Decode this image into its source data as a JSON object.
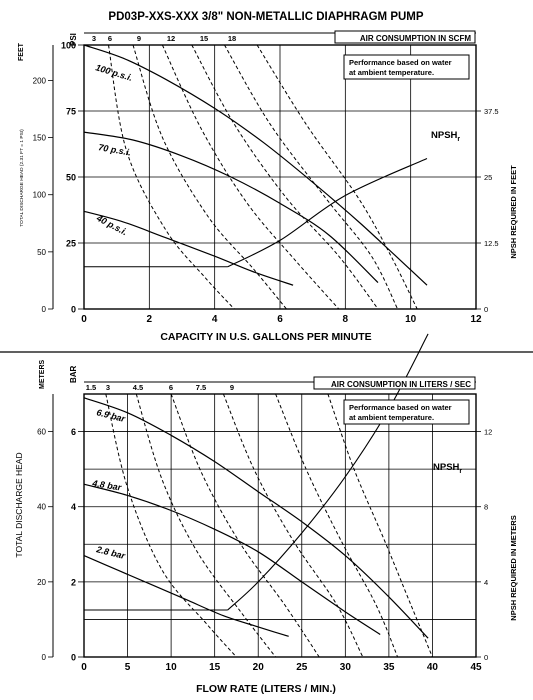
{
  "title": "PD03P-XXS-XXX  3/8\" NON-METALLIC DIAPHRAGM PUMP",
  "ambient_note": [
    "Performance based on water",
    "at ambient temperature."
  ],
  "npsh_label": "NPSH",
  "npsh_sub": "r",
  "colors": {
    "line": "#000000",
    "background": "#ffffff"
  },
  "chart_data": [
    {
      "type": "line",
      "title": "PD03P-XXS-XXX  3/8\" NON-METALLIC DIAPHRAGM PUMP",
      "xlabel": "CAPACITY IN U.S. GALLONS PER MINUTE",
      "ylabel_left": "TOTAL DISCHARGE HEAD (2.31 FT = 1 PSI)",
      "ylabel_left_unit": "FEET",
      "ylabel_psi_unit": "PSI",
      "ylabel_right": "NPSH REQUIRED IN FEET",
      "top_axis_label": "AIR CONSUMPTION IN SCFM",
      "xlim": [
        0,
        12
      ],
      "ylim_psi": [
        0,
        100
      ],
      "x_ticks": [
        "0",
        "2",
        "4",
        "6",
        "8",
        "10",
        "12"
      ],
      "feet_ticks": [
        "0",
        "50",
        "100",
        "150",
        "200"
      ],
      "psi_ticks": [
        "0",
        "25",
        "50",
        "75",
        "100"
      ],
      "npsh_ticks": [
        "0",
        "12.5",
        "25",
        "37.5"
      ],
      "scfm_ticks": [
        "3",
        "6",
        "9",
        "12",
        "15",
        "18"
      ],
      "npsh_max": 50,
      "grid": true,
      "series": [
        {
          "name": "100 p.s.i.",
          "points": [
            [
              0,
              100
            ],
            [
              1.2,
              95
            ],
            [
              2.5,
              87
            ],
            [
              4,
              76
            ],
            [
              5.5,
              63
            ],
            [
              7,
              48
            ],
            [
              8.5,
              32
            ],
            [
              10.5,
              9
            ]
          ]
        },
        {
          "name": "70 p.s.i.",
          "points": [
            [
              0,
              67
            ],
            [
              1.5,
              64
            ],
            [
              3,
              58
            ],
            [
              4.5,
              50
            ],
            [
              6,
              40
            ],
            [
              7.5,
              28
            ],
            [
              9,
              10
            ]
          ]
        },
        {
          "name": "40 p.s.i.",
          "points": [
            [
              0,
              37
            ],
            [
              1.2,
              33
            ],
            [
              2.5,
              27
            ],
            [
              4,
              20
            ],
            [
              5.2,
              14
            ],
            [
              6.4,
              9
            ]
          ]
        }
      ],
      "air_curves": [
        {
          "scfm": "3",
          "points": [
            [
              0.75,
              100
            ],
            [
              1.3,
              60
            ],
            [
              2.5,
              30
            ],
            [
              3.7,
              12
            ],
            [
              4.6,
              0
            ]
          ]
        },
        {
          "scfm": "6",
          "points": [
            [
              1.5,
              100
            ],
            [
              2.4,
              65
            ],
            [
              3.8,
              35
            ],
            [
              5.2,
              15
            ],
            [
              6.2,
              0
            ]
          ]
        },
        {
          "scfm": "9",
          "points": [
            [
              2.4,
              100
            ],
            [
              3.6,
              68
            ],
            [
              5.0,
              40
            ],
            [
              6.5,
              18
            ],
            [
              7.8,
              0
            ]
          ]
        },
        {
          "scfm": "12",
          "points": [
            [
              3.3,
              100
            ],
            [
              4.6,
              70
            ],
            [
              6.2,
              42
            ],
            [
              7.8,
              20
            ],
            [
              9.0,
              0
            ]
          ]
        },
        {
          "scfm": "15",
          "points": [
            [
              4.3,
              100
            ],
            [
              5.7,
              70
            ],
            [
              7.4,
              42
            ],
            [
              8.8,
              20
            ],
            [
              9.6,
              0
            ]
          ]
        },
        {
          "scfm": "18",
          "points": [
            [
              5.3,
              100
            ],
            [
              6.8,
              70
            ],
            [
              8.4,
              42
            ],
            [
              9.4,
              20
            ],
            [
              10.2,
              0
            ]
          ]
        }
      ],
      "npsh": {
        "horizontal_y": 16,
        "points": [
          [
            4.4,
            16
          ],
          [
            6,
            26
          ],
          [
            8,
            43
          ],
          [
            10.5,
            57
          ]
        ]
      }
    },
    {
      "type": "line",
      "xlabel": "FLOW RATE (LITERS / MIN.)",
      "ylabel_left": "TOTAL DISCHARGE HEAD",
      "ylabel_left_unit": "METERS",
      "ylabel_bar_unit": "BAR",
      "ylabel_right": "NPSH REQUIRED IN METERS",
      "top_axis_label": "AIR CONSUMPTION IN LITERS / SEC",
      "xlim": [
        0,
        45
      ],
      "ylim_bar": [
        0,
        7
      ],
      "x_ticks": [
        "0",
        "5",
        "10",
        "15",
        "20",
        "25",
        "30",
        "35",
        "40",
        "45"
      ],
      "meter_ticks": [
        "0",
        "20",
        "40",
        "60"
      ],
      "bar_ticks": [
        "0",
        "2",
        "4",
        "6"
      ],
      "npsh_ticks": [
        "0",
        "4",
        "8",
        "12"
      ],
      "lps_ticks": [
        "1.5",
        "3",
        "4.5",
        "6",
        "7.5",
        "9"
      ],
      "npsh_max": 14,
      "grid": true,
      "series": [
        {
          "name": "6.9 bar",
          "points": [
            [
              0,
              6.9
            ],
            [
              5,
              6.5
            ],
            [
              10,
              5.9
            ],
            [
              15,
              5.2
            ],
            [
              20,
              4.4
            ],
            [
              25,
              3.6
            ],
            [
              30,
              2.7
            ],
            [
              35,
              1.6
            ],
            [
              39.5,
              0.5
            ]
          ]
        },
        {
          "name": "4.8 bar",
          "points": [
            [
              0,
              4.6
            ],
            [
              5,
              4.3
            ],
            [
              10,
              3.9
            ],
            [
              15,
              3.4
            ],
            [
              20,
              2.8
            ],
            [
              25,
              2.0
            ],
            [
              30,
              1.2
            ],
            [
              34,
              0.6
            ]
          ]
        },
        {
          "name": "2.8 bar",
          "points": [
            [
              0,
              2.7
            ],
            [
              4,
              2.3
            ],
            [
              8,
              1.9
            ],
            [
              12,
              1.5
            ],
            [
              16,
              1.1
            ],
            [
              20,
              0.8
            ],
            [
              23.5,
              0.55
            ]
          ]
        }
      ],
      "air_curves": [
        {
          "lps": "1.5",
          "points": [
            [
              2.5,
              7
            ],
            [
              5,
              4.5
            ],
            [
              9,
              2.3
            ],
            [
              14,
              0.9
            ],
            [
              17.5,
              0
            ]
          ]
        },
        {
          "lps": "3",
          "points": [
            [
              6,
              7
            ],
            [
              9,
              4.7
            ],
            [
              13,
              2.8
            ],
            [
              18,
              1.2
            ],
            [
              22,
              0
            ]
          ]
        },
        {
          "lps": "4.5",
          "points": [
            [
              10,
              7
            ],
            [
              13.5,
              4.9
            ],
            [
              18,
              3.0
            ],
            [
              23,
              1.4
            ],
            [
              27,
              0
            ]
          ]
        },
        {
          "lps": "6",
          "points": [
            [
              16,
              7
            ],
            [
              19.5,
              5.0
            ],
            [
              24,
              3.1
            ],
            [
              29,
              1.4
            ],
            [
              32,
              0
            ]
          ]
        },
        {
          "lps": "7.5",
          "points": [
            [
              22,
              7
            ],
            [
              25.5,
              5.0
            ],
            [
              29.5,
              3.1
            ],
            [
              33.5,
              1.4
            ],
            [
              36,
              0
            ]
          ]
        },
        {
          "lps": "9",
          "points": [
            [
              28,
              7
            ],
            [
              31,
              5.0
            ],
            [
              34.5,
              3.1
            ],
            [
              37.5,
              1.4
            ],
            [
              40,
              0
            ]
          ]
        }
      ],
      "npsh": {
        "horizontal_y": 1.25,
        "points": [
          [
            16.5,
            1.25
          ],
          [
            20,
            2.0
          ],
          [
            25,
            3.3
          ],
          [
            30,
            4.8
          ],
          [
            35,
            6.6
          ],
          [
            39.5,
            8.6
          ]
        ]
      }
    }
  ]
}
